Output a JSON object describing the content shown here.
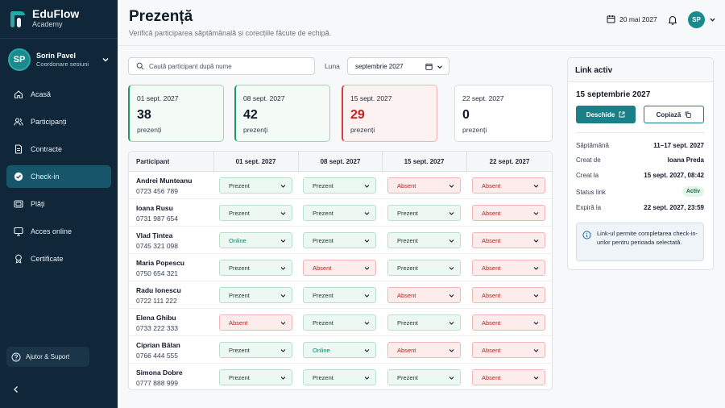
{
  "brand": {
    "name": "EduFlow",
    "sub": "Academy"
  },
  "user": {
    "initials": "SP",
    "name": "Sorin Pavel",
    "role": "Coordonare sesiuni"
  },
  "nav": [
    {
      "label": "Acasă",
      "icon": "home-icon"
    },
    {
      "label": "Participanți",
      "icon": "users-icon"
    },
    {
      "label": "Contracte",
      "icon": "document-icon"
    },
    {
      "label": "Check-in",
      "icon": "check-circle-icon",
      "active": true
    },
    {
      "label": "Plăți",
      "icon": "payment-icon"
    },
    {
      "label": "Acces online",
      "icon": "monitor-icon"
    },
    {
      "label": "Certificate",
      "icon": "award-icon"
    }
  ],
  "help": {
    "label": "Ajutor & Suport"
  },
  "header": {
    "title": "Prezență",
    "subtitle": "Verifică participarea săptămânală și corecțiile făcute de echipă.",
    "date": "20 mai 2027",
    "avatar": "SP"
  },
  "filters": {
    "search_placeholder": "Caută participant după nume",
    "month_label": "Luna",
    "month_value": "septembrie 2027"
  },
  "stats": [
    {
      "date": "01 sept. 2027",
      "value": "38",
      "label": "prezenți",
      "tone": "green"
    },
    {
      "date": "08 sept. 2027",
      "value": "42",
      "label": "prezenți",
      "tone": "green"
    },
    {
      "date": "15 sept. 2027",
      "value": "29",
      "label": "prezenți",
      "tone": "red"
    },
    {
      "date": "22 sept. 2027",
      "value": "0",
      "label": "prezenți",
      "tone": "neutral"
    }
  ],
  "table": {
    "columns": [
      "Participant",
      "01 sept. 2027",
      "08 sept. 2027",
      "15 sept. 2027",
      "22 sept. 2027"
    ],
    "rows": [
      {
        "name": "Andrei Munteanu",
        "phone": "0723 456 789",
        "statuses": [
          "Prezent",
          "Prezent",
          "Absent",
          "Absent"
        ]
      },
      {
        "name": "Ioana Rusu",
        "phone": "0731 987 654",
        "statuses": [
          "Prezent",
          "Prezent",
          "Prezent",
          "Absent"
        ]
      },
      {
        "name": "Vlad Țintea",
        "phone": "0745 321 098",
        "statuses": [
          "Online",
          "Prezent",
          "Prezent",
          "Absent"
        ]
      },
      {
        "name": "Maria Popescu",
        "phone": "0750 654 321",
        "statuses": [
          "Prezent",
          "Absent",
          "Prezent",
          "Absent"
        ]
      },
      {
        "name": "Radu Ionescu",
        "phone": "0722 111 222",
        "statuses": [
          "Prezent",
          "Prezent",
          "Absent",
          "Absent"
        ]
      },
      {
        "name": "Elena Ghibu",
        "phone": "0733 222 333",
        "statuses": [
          "Absent",
          "Prezent",
          "Prezent",
          "Absent"
        ]
      },
      {
        "name": "Ciprian Bălan",
        "phone": "0766 444 555",
        "statuses": [
          "Prezent",
          "Online",
          "Absent",
          "Absent"
        ]
      },
      {
        "name": "Simona Dobre",
        "phone": "0777 888 999",
        "statuses": [
          "Prezent",
          "Prezent",
          "Prezent",
          "Absent"
        ]
      }
    ]
  },
  "panel": {
    "title": "Link activ",
    "date": "15 septembrie 2027",
    "open_label": "Deschide",
    "copy_label": "Copiază",
    "details": [
      {
        "key": "Săptămână",
        "value": "11–17 sept. 2027"
      },
      {
        "key": "Creat de",
        "value": "Ioana Preda"
      },
      {
        "key": "Creat la",
        "value": "15 sept. 2027, 08:42"
      },
      {
        "key": "Status link",
        "value": "Activ",
        "badge": true
      },
      {
        "key": "Expiră la",
        "value": "22 sept. 2027, 23:59"
      }
    ],
    "info": "Link-ul permite completarea check-in-urilor pentru perioada selectată."
  },
  "colors": {
    "accent": "#1a7f86",
    "sidebar": "#0f2738",
    "present": "#1f9a64",
    "absent": "#d93a3a"
  }
}
